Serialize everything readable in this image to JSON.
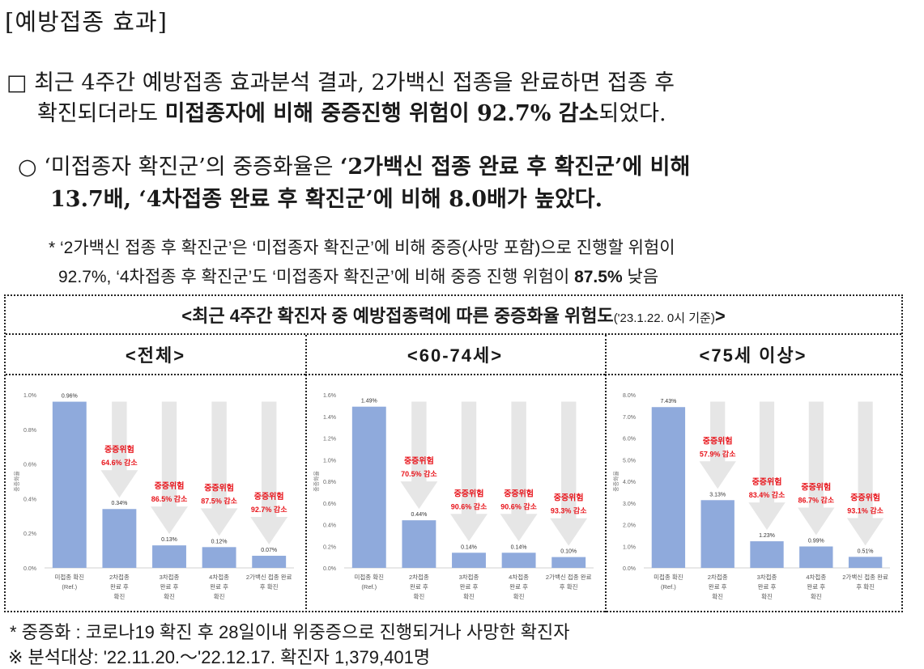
{
  "section_title": "[예방접종 효과]",
  "para1": {
    "bullet": "□",
    "line1": "최근 4주간 예방접종 효과분석 결과, 2가백신 접종을 완료하면 접종 후",
    "line2_a": "확진되더라도 ",
    "line2_b": "미접종자에 비해 중증진행 위험이 92.7% 감소",
    "line2_c": "되었다."
  },
  "para2": {
    "bullet": "○",
    "line1_a": "‘미접종자 확진군’의 중증화율은 ",
    "line1_b": "‘2가백신 접종 완료 후 확진군’에 비해",
    "line2": "13.7배, ‘4차접종 완료 후 확진군’에 비해 8.0배가 높았다."
  },
  "note": {
    "line1": "* ‘2가백신 접종 후 확진군’은 ‘미접종자 확진군’에 비해 중증(사망 포함)으로 진행할 위험이",
    "line2_a": "92.7%, ‘4차접종 후 확진군’도 ‘미접종자 확진군’에 비해 중증 진행 위험이 ",
    "line2_b": "87.5%",
    "line2_c": " 낮음"
  },
  "table": {
    "title_main": "<최근 4주간 확진자 중 예방접종력에 따른 중증화율 위험도",
    "title_small": "('23.1.22. 0시 기준)",
    "title_end": ">",
    "columns": [
      "<전체>",
      "<60-74세>",
      "<75세 이상>"
    ]
  },
  "colors": {
    "bar": "#8faadc",
    "risk_text": "#e8141b",
    "arrow": "#e6e6e6"
  },
  "chart_data": [
    {
      "type": "bar",
      "title": "<전체>",
      "ylabel": "중증화율",
      "ylim": [
        0,
        1.0
      ],
      "yticks": [
        "0.0%",
        "0.2%",
        "0.4%",
        "0.6%",
        "0.8%",
        "1.0%"
      ],
      "categories": [
        [
          "미접종 확진",
          "(Ref.)"
        ],
        [
          "2차접종",
          "완료 후",
          "확진"
        ],
        [
          "3차접종",
          "완료 후",
          "확진"
        ],
        [
          "4차접종",
          "완료 후",
          "확진"
        ],
        [
          "2가백신 접종 완료",
          "후 확진"
        ]
      ],
      "values": [
        0.96,
        0.34,
        0.13,
        0.12,
        0.07
      ],
      "value_labels": [
        "0.96%",
        "0.34%",
        "0.13%",
        "0.12%",
        "0.07%"
      ],
      "risk_label": "중증위험",
      "reductions": [
        "",
        "64.6% 감소",
        "86.5% 감소",
        "87.5% 감소",
        "92.7% 감소"
      ]
    },
    {
      "type": "bar",
      "title": "<60-74세>",
      "ylabel": "중증화율",
      "ylim": [
        0,
        1.6
      ],
      "yticks": [
        "0.0%",
        "0.2%",
        "0.4%",
        "0.6%",
        "0.8%",
        "1.0%",
        "1.2%",
        "1.4%",
        "1.6%"
      ],
      "categories": [
        [
          "미접종 확진",
          "(Ref.)"
        ],
        [
          "2차접종",
          "완료 후",
          "확진"
        ],
        [
          "3차접종",
          "완료 후",
          "확진"
        ],
        [
          "4차접종",
          "완료 후",
          "확진"
        ],
        [
          "2가백신 접종 완료",
          "후 확진"
        ]
      ],
      "values": [
        1.49,
        0.44,
        0.14,
        0.14,
        0.1
      ],
      "value_labels": [
        "1.49%",
        "0.44%",
        "0.14%",
        "0.14%",
        "0.10%"
      ],
      "risk_label": "중증위험",
      "reductions": [
        "",
        "70.5% 감소",
        "90.6% 감소",
        "90.6% 감소",
        "93.3% 감소"
      ]
    },
    {
      "type": "bar",
      "title": "<75세 이상>",
      "ylabel": "중증화율",
      "ylim": [
        0,
        8.0
      ],
      "yticks": [
        "0.0%",
        "1.0%",
        "2.0%",
        "3.0%",
        "4.0%",
        "5.0%",
        "6.0%",
        "7.0%",
        "8.0%"
      ],
      "categories": [
        [
          "미접종 확진",
          "(Ref.)"
        ],
        [
          "2차접종",
          "완료 후",
          "확진"
        ],
        [
          "3차접종",
          "완료 후",
          "확진"
        ],
        [
          "4차접종",
          "완료 후",
          "확진"
        ],
        [
          "2가백신 접종 완료",
          "후 확진"
        ]
      ],
      "values": [
        7.43,
        3.13,
        1.23,
        0.99,
        0.51
      ],
      "value_labels": [
        "7.43%",
        "3.13%",
        "1.23%",
        "0.99%",
        "0.51%"
      ],
      "risk_label": "중증위험",
      "reductions": [
        "",
        "57.9% 감소",
        "83.4% 감소",
        "86.7% 감소",
        "93.1% 감소"
      ]
    }
  ],
  "footnotes": {
    "line1": "* 중증화 : 코로나19 확진 후 28일이내 위중증으로 진행되거나 사망한 확진자",
    "line2": "※ 분석대상: '22.11.20.～'22.12.17. 확진자 1,379,401명"
  }
}
